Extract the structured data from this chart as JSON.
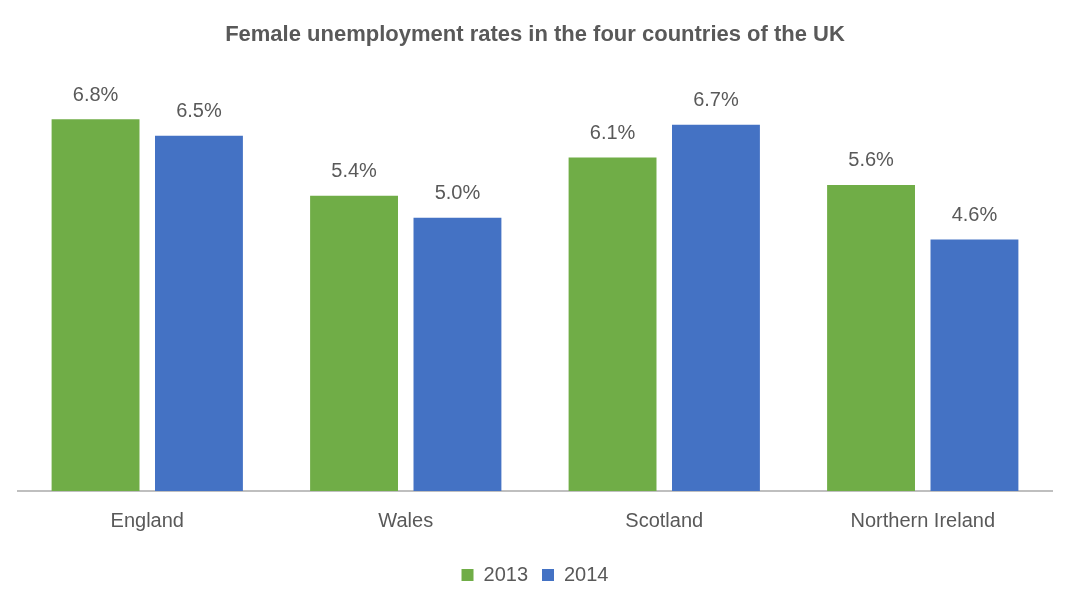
{
  "chart_data": {
    "type": "bar",
    "title": "Female unemployment rates in the four countries of the UK",
    "categories": [
      "England",
      "Wales",
      "Scotland",
      "Northern Ireland"
    ],
    "series": [
      {
        "name": "2013",
        "color": "#70ad47",
        "values": [
          6.8,
          5.4,
          6.1,
          5.6
        ],
        "value_labels": [
          "6.8%",
          "5.4%",
          "6.1%",
          "5.6%"
        ]
      },
      {
        "name": "2014",
        "color": "#4472c4",
        "values": [
          6.5,
          5.0,
          6.7,
          4.6
        ],
        "value_labels": [
          "6.5%",
          "5.0%",
          "6.7%",
          "4.6%"
        ]
      }
    ],
    "grid": false,
    "legend": "bottom"
  }
}
